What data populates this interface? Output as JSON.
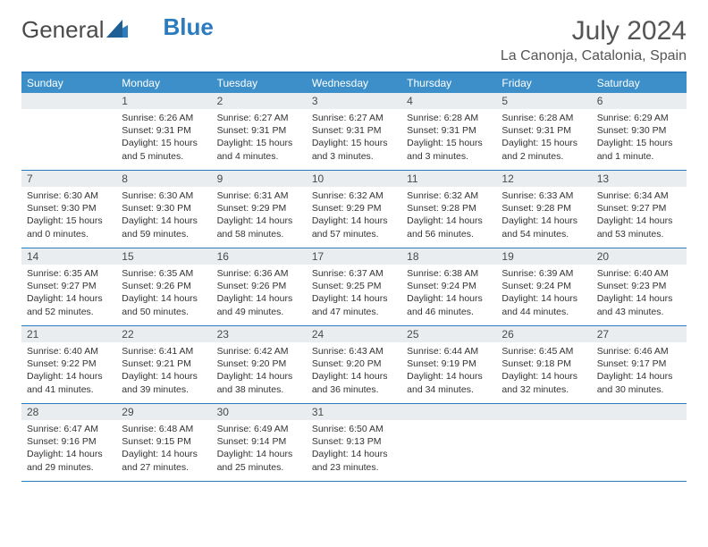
{
  "brand": {
    "part1": "General",
    "part2": "Blue"
  },
  "title": "July 2024",
  "location": "La Canonja, Catalonia, Spain",
  "weekdays": [
    "Sunday",
    "Monday",
    "Tuesday",
    "Wednesday",
    "Thursday",
    "Friday",
    "Saturday"
  ],
  "colors": {
    "header_bg": "#3d8fc9",
    "border": "#2b7bbf",
    "daynum_bg": "#e9edef",
    "text": "#333333"
  },
  "start_offset": 1,
  "days": [
    {
      "n": "1",
      "sunrise": "Sunrise: 6:26 AM",
      "sunset": "Sunset: 9:31 PM",
      "day1": "Daylight: 15 hours",
      "day2": "and 5 minutes."
    },
    {
      "n": "2",
      "sunrise": "Sunrise: 6:27 AM",
      "sunset": "Sunset: 9:31 PM",
      "day1": "Daylight: 15 hours",
      "day2": "and 4 minutes."
    },
    {
      "n": "3",
      "sunrise": "Sunrise: 6:27 AM",
      "sunset": "Sunset: 9:31 PM",
      "day1": "Daylight: 15 hours",
      "day2": "and 3 minutes."
    },
    {
      "n": "4",
      "sunrise": "Sunrise: 6:28 AM",
      "sunset": "Sunset: 9:31 PM",
      "day1": "Daylight: 15 hours",
      "day2": "and 3 minutes."
    },
    {
      "n": "5",
      "sunrise": "Sunrise: 6:28 AM",
      "sunset": "Sunset: 9:31 PM",
      "day1": "Daylight: 15 hours",
      "day2": "and 2 minutes."
    },
    {
      "n": "6",
      "sunrise": "Sunrise: 6:29 AM",
      "sunset": "Sunset: 9:30 PM",
      "day1": "Daylight: 15 hours",
      "day2": "and 1 minute."
    },
    {
      "n": "7",
      "sunrise": "Sunrise: 6:30 AM",
      "sunset": "Sunset: 9:30 PM",
      "day1": "Daylight: 15 hours",
      "day2": "and 0 minutes."
    },
    {
      "n": "8",
      "sunrise": "Sunrise: 6:30 AM",
      "sunset": "Sunset: 9:30 PM",
      "day1": "Daylight: 14 hours",
      "day2": "and 59 minutes."
    },
    {
      "n": "9",
      "sunrise": "Sunrise: 6:31 AM",
      "sunset": "Sunset: 9:29 PM",
      "day1": "Daylight: 14 hours",
      "day2": "and 58 minutes."
    },
    {
      "n": "10",
      "sunrise": "Sunrise: 6:32 AM",
      "sunset": "Sunset: 9:29 PM",
      "day1": "Daylight: 14 hours",
      "day2": "and 57 minutes."
    },
    {
      "n": "11",
      "sunrise": "Sunrise: 6:32 AM",
      "sunset": "Sunset: 9:28 PM",
      "day1": "Daylight: 14 hours",
      "day2": "and 56 minutes."
    },
    {
      "n": "12",
      "sunrise": "Sunrise: 6:33 AM",
      "sunset": "Sunset: 9:28 PM",
      "day1": "Daylight: 14 hours",
      "day2": "and 54 minutes."
    },
    {
      "n": "13",
      "sunrise": "Sunrise: 6:34 AM",
      "sunset": "Sunset: 9:27 PM",
      "day1": "Daylight: 14 hours",
      "day2": "and 53 minutes."
    },
    {
      "n": "14",
      "sunrise": "Sunrise: 6:35 AM",
      "sunset": "Sunset: 9:27 PM",
      "day1": "Daylight: 14 hours",
      "day2": "and 52 minutes."
    },
    {
      "n": "15",
      "sunrise": "Sunrise: 6:35 AM",
      "sunset": "Sunset: 9:26 PM",
      "day1": "Daylight: 14 hours",
      "day2": "and 50 minutes."
    },
    {
      "n": "16",
      "sunrise": "Sunrise: 6:36 AM",
      "sunset": "Sunset: 9:26 PM",
      "day1": "Daylight: 14 hours",
      "day2": "and 49 minutes."
    },
    {
      "n": "17",
      "sunrise": "Sunrise: 6:37 AM",
      "sunset": "Sunset: 9:25 PM",
      "day1": "Daylight: 14 hours",
      "day2": "and 47 minutes."
    },
    {
      "n": "18",
      "sunrise": "Sunrise: 6:38 AM",
      "sunset": "Sunset: 9:24 PM",
      "day1": "Daylight: 14 hours",
      "day2": "and 46 minutes."
    },
    {
      "n": "19",
      "sunrise": "Sunrise: 6:39 AM",
      "sunset": "Sunset: 9:24 PM",
      "day1": "Daylight: 14 hours",
      "day2": "and 44 minutes."
    },
    {
      "n": "20",
      "sunrise": "Sunrise: 6:40 AM",
      "sunset": "Sunset: 9:23 PM",
      "day1": "Daylight: 14 hours",
      "day2": "and 43 minutes."
    },
    {
      "n": "21",
      "sunrise": "Sunrise: 6:40 AM",
      "sunset": "Sunset: 9:22 PM",
      "day1": "Daylight: 14 hours",
      "day2": "and 41 minutes."
    },
    {
      "n": "22",
      "sunrise": "Sunrise: 6:41 AM",
      "sunset": "Sunset: 9:21 PM",
      "day1": "Daylight: 14 hours",
      "day2": "and 39 minutes."
    },
    {
      "n": "23",
      "sunrise": "Sunrise: 6:42 AM",
      "sunset": "Sunset: 9:20 PM",
      "day1": "Daylight: 14 hours",
      "day2": "and 38 minutes."
    },
    {
      "n": "24",
      "sunrise": "Sunrise: 6:43 AM",
      "sunset": "Sunset: 9:20 PM",
      "day1": "Daylight: 14 hours",
      "day2": "and 36 minutes."
    },
    {
      "n": "25",
      "sunrise": "Sunrise: 6:44 AM",
      "sunset": "Sunset: 9:19 PM",
      "day1": "Daylight: 14 hours",
      "day2": "and 34 minutes."
    },
    {
      "n": "26",
      "sunrise": "Sunrise: 6:45 AM",
      "sunset": "Sunset: 9:18 PM",
      "day1": "Daylight: 14 hours",
      "day2": "and 32 minutes."
    },
    {
      "n": "27",
      "sunrise": "Sunrise: 6:46 AM",
      "sunset": "Sunset: 9:17 PM",
      "day1": "Daylight: 14 hours",
      "day2": "and 30 minutes."
    },
    {
      "n": "28",
      "sunrise": "Sunrise: 6:47 AM",
      "sunset": "Sunset: 9:16 PM",
      "day1": "Daylight: 14 hours",
      "day2": "and 29 minutes."
    },
    {
      "n": "29",
      "sunrise": "Sunrise: 6:48 AM",
      "sunset": "Sunset: 9:15 PM",
      "day1": "Daylight: 14 hours",
      "day2": "and 27 minutes."
    },
    {
      "n": "30",
      "sunrise": "Sunrise: 6:49 AM",
      "sunset": "Sunset: 9:14 PM",
      "day1": "Daylight: 14 hours",
      "day2": "and 25 minutes."
    },
    {
      "n": "31",
      "sunrise": "Sunrise: 6:50 AM",
      "sunset": "Sunset: 9:13 PM",
      "day1": "Daylight: 14 hours",
      "day2": "and 23 minutes."
    }
  ]
}
